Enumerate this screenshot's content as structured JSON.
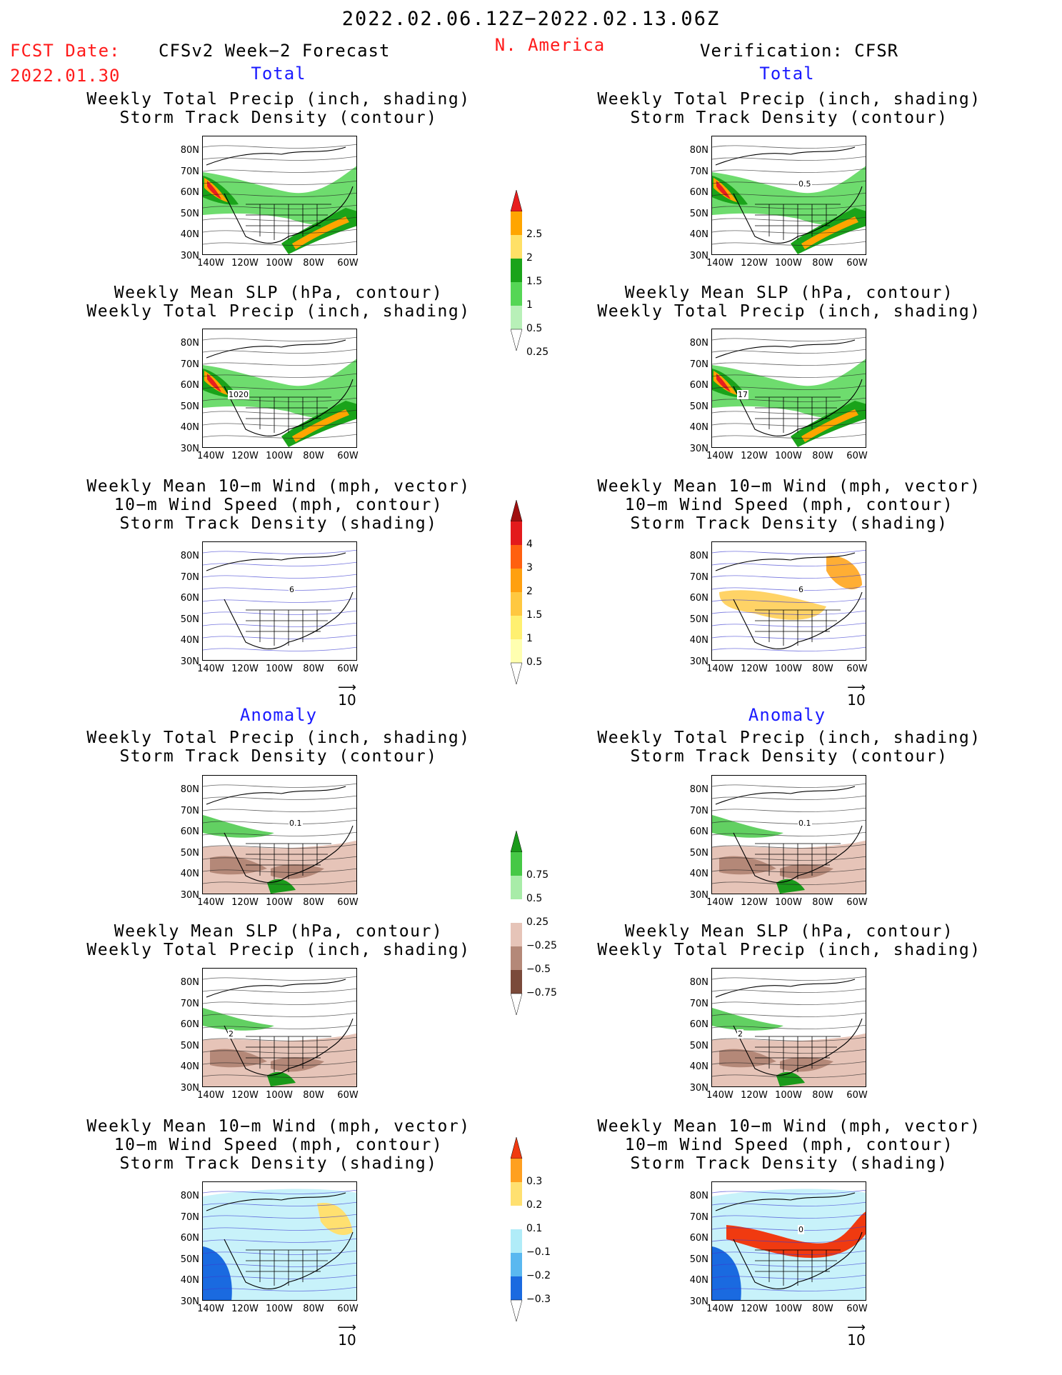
{
  "header": {
    "period": "2022.02.06.12Z−2022.02.13.06Z",
    "fcst_label": "FCST Date:",
    "fcst_date": "2022.01.30",
    "forecast_title": "CFSv2 Week−2 Forecast",
    "region": "N. America",
    "verification": "Verification: CFSR"
  },
  "sections": {
    "total": "Total",
    "anomaly": "Anomaly"
  },
  "titles": {
    "precip_storm": [
      "Weekly Total Precip (inch, shading)",
      "Storm Track Density (contour)"
    ],
    "slp_precip": [
      "Weekly Mean SLP (hPa, contour)",
      "Weekly Total Precip (inch, shading)"
    ],
    "wind_storm": [
      "Weekly Mean 10−m Wind (mph, vector)",
      "10−m Wind Speed (mph, contour)",
      "Storm Track Density (shading)"
    ]
  },
  "axes": {
    "lat_ticks": [
      "80N",
      "70N",
      "60N",
      "50N",
      "40N",
      "30N"
    ],
    "lon_ticks": [
      "140W",
      "120W",
      "100W",
      "80W",
      "60W"
    ]
  },
  "vector_ref": "10",
  "colorbars": {
    "total_precip": {
      "labels": [
        "2.5",
        "2",
        "1.5",
        "1",
        "0.5",
        "0.25"
      ],
      "colors": [
        "#e81e1e",
        "#ffa500",
        "#ffe066",
        "#1aa31a",
        "#55d655",
        "#b8f0b8"
      ]
    },
    "storm_density": {
      "labels": [
        "4",
        "3",
        "2",
        "1.5",
        "1",
        "0.5"
      ],
      "colors": [
        "#a01010",
        "#e31a1c",
        "#ff6010",
        "#ffa010",
        "#ffc840",
        "#fff070",
        "#ffffb0"
      ]
    },
    "precip_anom": {
      "labels": [
        "0.75",
        "0.5",
        "0.25",
        "−0.25",
        "−0.5",
        "−0.75"
      ],
      "colors": [
        "#1a9a1a",
        "#46c846",
        "#a8eca8",
        "#ffffff",
        "#e6c4b8",
        "#b48878",
        "#7a4a3a"
      ]
    },
    "storm_anom": {
      "labels": [
        "0.3",
        "0.2",
        "0.1",
        "−0.1",
        "−0.2",
        "−0.3"
      ],
      "colors": [
        "#f03a10",
        "#ffa020",
        "#ffe070",
        "#ffffff",
        "#b0ecf8",
        "#5ab8f0",
        "#1a6ae0"
      ]
    }
  },
  "map_annotations": {
    "fc_total_precip": "",
    "ver_total_precip": "0.5",
    "fc_total_slp": "1020",
    "ver_total_slp": "17",
    "fc_total_wind": "6",
    "ver_total_wind": "6",
    "fc_anom_precip": "0.1",
    "ver_anom_precip": "0.1",
    "fc_anom_slp": "2",
    "ver_anom_slp": "2",
    "fc_anom_wind": "",
    "ver_anom_wind": "0"
  }
}
